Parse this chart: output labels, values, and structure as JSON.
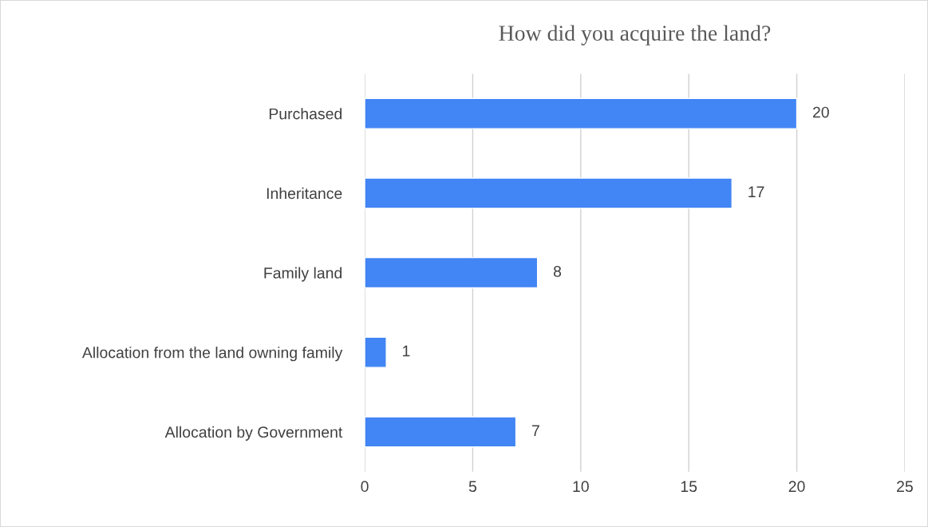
{
  "chart_data": {
    "type": "bar",
    "orientation": "horizontal",
    "title": "How did you acquire the land?",
    "categories": [
      "Purchased",
      "Inheritance",
      "Family land",
      "Allocation from the land owning family",
      "Allocation by Government"
    ],
    "values": [
      20,
      17,
      8,
      1,
      7
    ],
    "color": "#4285f4",
    "xlim": [
      0,
      25
    ],
    "xticks": [
      0,
      5,
      10,
      15,
      20,
      25
    ],
    "grid": "x",
    "data_labels": true
  }
}
